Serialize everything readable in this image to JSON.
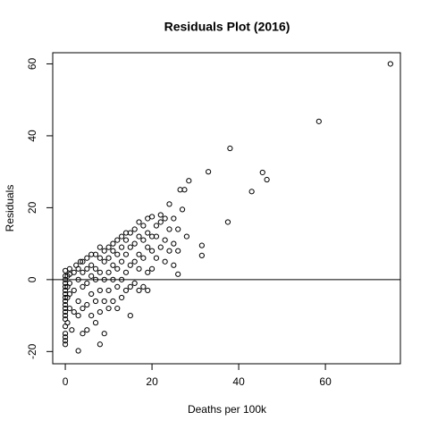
{
  "chart_data": {
    "type": "scatter",
    "title": "Residuals Plot (2016)",
    "x_label": "Deaths per 100k",
    "y_label": "Residuals",
    "xlim": [
      -2.9,
      77.3
    ],
    "ylim": [
      -23.4,
      63.1
    ],
    "xticks": [
      0,
      20,
      40,
      60
    ],
    "yticks": [
      -20,
      0,
      20,
      40,
      60
    ],
    "hline": 0,
    "color": "#000000",
    "x": [
      0,
      0,
      0,
      0,
      0,
      0,
      0,
      0,
      0,
      0,
      0,
      0,
      0,
      0,
      0,
      0,
      0,
      0,
      0,
      0.5,
      0.5,
      0.5,
      0.5,
      1,
      1,
      1,
      1,
      1,
      3,
      1.5,
      2,
      2,
      2,
      2.5,
      3,
      3,
      3,
      3,
      3.5,
      4,
      4,
      4,
      4,
      4,
      5,
      5,
      5,
      5,
      5,
      6,
      6,
      6,
      6,
      6,
      7,
      7,
      7,
      7,
      7,
      8,
      8,
      8,
      8,
      8,
      8,
      9,
      9,
      9,
      9,
      9,
      10,
      10,
      10,
      10,
      10,
      11,
      11,
      11,
      11,
      11,
      12,
      12,
      12,
      12,
      12,
      13,
      13,
      13,
      13,
      13,
      14,
      14,
      14,
      14,
      14,
      15,
      15,
      15,
      15,
      15,
      16,
      16,
      16,
      16,
      17,
      17,
      17,
      17,
      17,
      18,
      18,
      18,
      18,
      19,
      19,
      19,
      19,
      19,
      20,
      20,
      20,
      20,
      21,
      21,
      21,
      22,
      22,
      22,
      23,
      23,
      23,
      24,
      24,
      24,
      25,
      25,
      25,
      26,
      26,
      26,
      26.5,
      27.5,
      27,
      28.5,
      28,
      31.5,
      31.5,
      33,
      37.5,
      38,
      43,
      45.5,
      46.5,
      58.5,
      75
    ],
    "values": [
      -18,
      -17,
      -16,
      -15,
      -13,
      -11,
      -10,
      -9,
      -8,
      -7,
      -6,
      -5,
      -4,
      -3,
      -2,
      -1,
      0,
      1,
      2.5,
      -12,
      -5,
      -2,
      1,
      -8,
      -4,
      -1,
      1.5,
      3,
      -19.8,
      -14,
      -9,
      -3,
      2,
      4,
      -10,
      -6,
      0,
      3,
      5,
      -15,
      -8,
      -2,
      2,
      5,
      -14,
      -7,
      -1,
      3,
      6,
      -10,
      -4,
      1,
      4,
      7,
      -12,
      -6,
      0,
      3,
      7,
      -18,
      -9,
      -3,
      2,
      6,
      9,
      -15,
      -6,
      0,
      5,
      8,
      -8,
      -3,
      2,
      6,
      9,
      -6,
      0,
      4,
      8,
      10,
      -8,
      -2,
      3,
      7,
      11,
      -5,
      0,
      5,
      9,
      12,
      -3,
      2,
      7,
      11,
      13,
      -10,
      -2,
      4,
      9,
      13,
      -1,
      5,
      10,
      14,
      -3,
      3,
      7,
      12,
      16,
      -2,
      6,
      11,
      15,
      -3,
      2,
      9,
      13,
      17,
      3,
      8,
      12,
      17.5,
      6,
      12,
      15,
      9,
      16,
      18,
      5,
      11,
      17,
      21,
      14,
      8,
      10,
      17,
      4,
      14,
      1.5,
      8,
      25,
      25,
      19.5,
      27.5,
      12,
      9.5,
      6.7,
      30,
      16,
      36.5,
      24.5,
      29.8,
      27.8,
      44,
      60
    ]
  }
}
